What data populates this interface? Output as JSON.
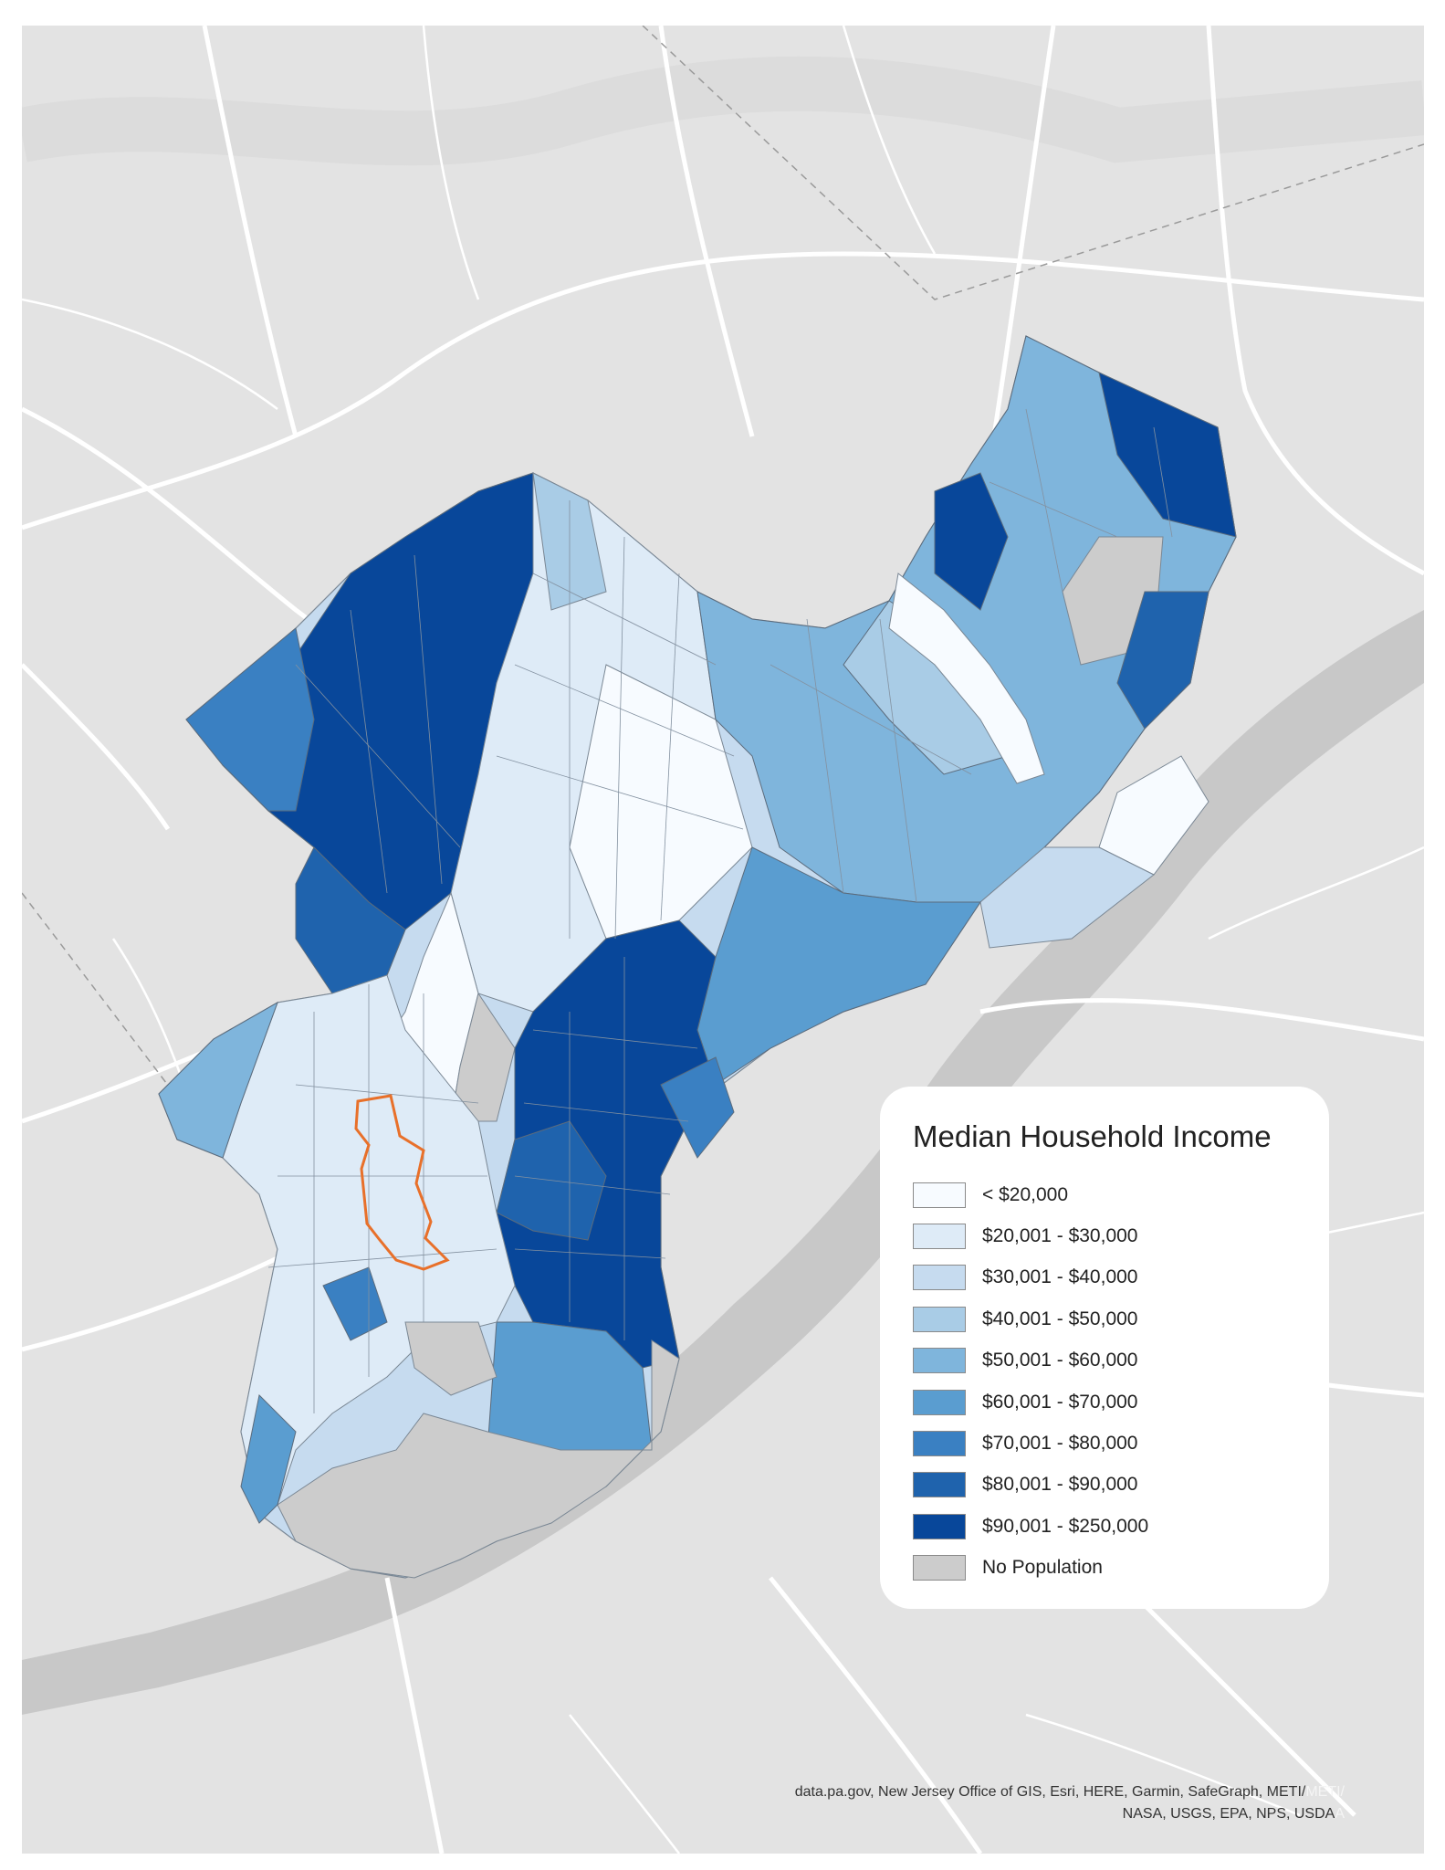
{
  "legend": {
    "title": "Median Household Income",
    "items": [
      {
        "label": "< $20,000",
        "color": "#f7fbff"
      },
      {
        "label": "$20,001 - $30,000",
        "color": "#deebf7"
      },
      {
        "label": "$30,001 - $40,000",
        "color": "#c6dbef"
      },
      {
        "label": "$40,001 - $50,000",
        "color": "#a9cce6"
      },
      {
        "label": "$50,001 - $60,000",
        "color": "#7fb5dc"
      },
      {
        "label": "$60,001 - $70,000",
        "color": "#5a9dd0"
      },
      {
        "label": "$70,001 - $80,000",
        "color": "#3a80c2"
      },
      {
        "label": "$80,001 - $90,000",
        "color": "#1f63ad"
      },
      {
        "label": "$90,001 - $250,000",
        "color": "#08479a"
      },
      {
        "label": "No Population",
        "color": "#cccccc"
      }
    ]
  },
  "attribution": {
    "line1": "data.pa.gov, New Jersey Office of GIS, Esri, HERE, Garmin, SafeGraph, METI/",
    "line1_ghost": "METI/",
    "line2": "NASA, USGS, EPA, NPS, USDA",
    "line2_ghost": "A"
  },
  "colors": {
    "basemap": "#e3e3e3",
    "roads": "#ffffff",
    "river": "#c8c8c8",
    "highlight_outline": "#e8702a"
  }
}
